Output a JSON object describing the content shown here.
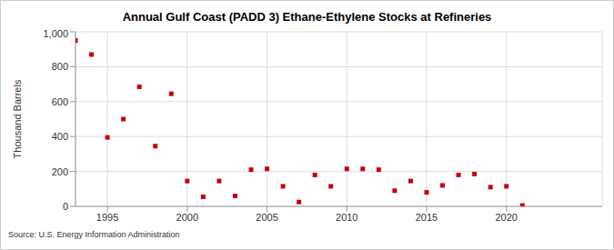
{
  "chart_data": {
    "type": "scatter",
    "title": "Annual Gulf Coast (PADD 3) Ethane-Ethylene Stocks at Refineries",
    "y_label": "Thousand Barrels",
    "source": "Source: U.S. Energy Information Administration",
    "x": [
      1993,
      1994,
      1995,
      1996,
      1997,
      1998,
      1999,
      2000,
      2001,
      2002,
      2003,
      2004,
      2005,
      2006,
      2007,
      2008,
      2009,
      2010,
      2011,
      2012,
      2013,
      2014,
      2015,
      2016,
      2017,
      2018,
      2019,
      2020,
      2021
    ],
    "values": [
      950,
      870,
      395,
      500,
      685,
      345,
      645,
      145,
      55,
      145,
      60,
      210,
      215,
      115,
      25,
      180,
      115,
      215,
      215,
      210,
      90,
      145,
      80,
      120,
      180,
      185,
      110,
      115,
      5
    ],
    "color": "#cc0000",
    "marker": "square",
    "xlim": [
      1993,
      2026
    ],
    "xticks": [
      1995,
      2000,
      2005,
      2010,
      2015,
      2020
    ],
    "ylim": [
      0,
      1000
    ],
    "yticks": [
      0,
      200,
      400,
      600,
      800,
      {
        "value": 1000,
        "label": "1,000"
      }
    ],
    "grid": true
  }
}
